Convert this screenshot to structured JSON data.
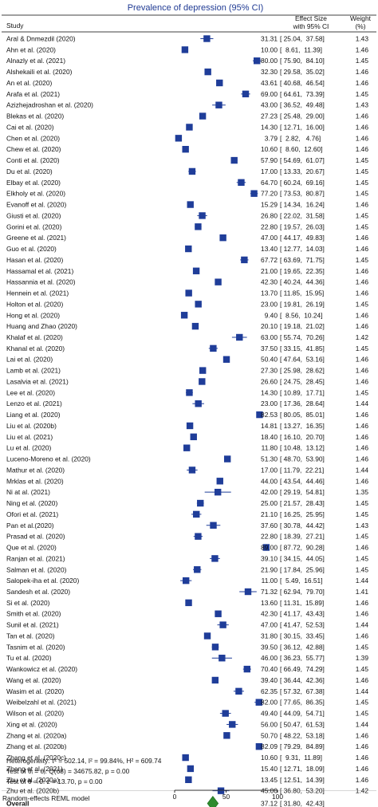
{
  "chart_data": {
    "type": "forest",
    "title": "Prevalence of depression (95% CI)",
    "header_study": "Study",
    "header_effect": "Effect Size",
    "header_effect2": "with 95% CI",
    "header_weight": "Weight",
    "header_weight2": "(%)",
    "xlim": [
      0,
      100
    ],
    "xticks": [
      0,
      50,
      100
    ],
    "colors": {
      "marker": "#1f3d99",
      "ci": "#1f3d99",
      "overall": "#2e8b2e",
      "title": "#1f3a93"
    },
    "studies": [
      {
        "label": "Aral & Dnmezdil (2020)",
        "es": 31.31,
        "lo": 25.04,
        "hi": 37.58,
        "w": 1.43
      },
      {
        "label": "Ahn et al. (2020)",
        "es": 10.0,
        "lo": 8.61,
        "hi": 11.39,
        "w": 1.46
      },
      {
        "label": "Alnazly et al. (2021)",
        "es": 80.0,
        "lo": 75.9,
        "hi": 84.1,
        "w": 1.45
      },
      {
        "label": "Alshekaili et al. (2020)",
        "es": 32.3,
        "lo": 29.58,
        "hi": 35.02,
        "w": 1.46
      },
      {
        "label": "An et al. (2020)",
        "es": 43.61,
        "lo": 40.68,
        "hi": 46.54,
        "w": 1.46
      },
      {
        "label": "Arafa et al. (2021)",
        "es": 69.0,
        "lo": 64.61,
        "hi": 73.39,
        "w": 1.45
      },
      {
        "label": "Azizhejadroshan et al. (2020)",
        "es": 43.0,
        "lo": 36.52,
        "hi": 49.48,
        "w": 1.43
      },
      {
        "label": "Blekas et al. (2020)",
        "es": 27.23,
        "lo": 25.48,
        "hi": 29.0,
        "w": 1.46
      },
      {
        "label": "Cai et al. (2020)",
        "es": 14.3,
        "lo": 12.71,
        "hi": 16.0,
        "w": 1.46
      },
      {
        "label": "Chen et al. (2020)",
        "es": 3.79,
        "lo": 2.82,
        "hi": 4.76,
        "w": 1.46
      },
      {
        "label": "Chew et al. (2020)",
        "es": 10.6,
        "lo": 8.6,
        "hi": 12.6,
        "w": 1.46
      },
      {
        "label": "Conti et al. (2020)",
        "es": 57.9,
        "lo": 54.69,
        "hi": 61.07,
        "w": 1.45
      },
      {
        "label": "Du et al. (2020)",
        "es": 17.0,
        "lo": 13.33,
        "hi": 20.67,
        "w": 1.45
      },
      {
        "label": "Elbay et al. (2020)",
        "es": 64.7,
        "lo": 60.24,
        "hi": 69.16,
        "w": 1.45
      },
      {
        "label": "Elkholy et al. (2020)",
        "es": 77.2,
        "lo": 73.53,
        "hi": 80.87,
        "w": 1.45
      },
      {
        "label": "Evanoff et al. (2020)",
        "es": 15.29,
        "lo": 14.34,
        "hi": 16.24,
        "w": 1.46
      },
      {
        "label": "Giusti et al. (2020)",
        "es": 26.8,
        "lo": 22.02,
        "hi": 31.58,
        "w": 1.45
      },
      {
        "label": "Gorini et al. (2020)",
        "es": 22.8,
        "lo": 19.57,
        "hi": 26.03,
        "w": 1.45
      },
      {
        "label": "Greene et al. (2021)",
        "es": 47.0,
        "lo": 44.17,
        "hi": 49.83,
        "w": 1.46
      },
      {
        "label": "Guo et al. (2020)",
        "es": 13.4,
        "lo": 12.77,
        "hi": 14.03,
        "w": 1.46
      },
      {
        "label": "Hasan et al. (2020)",
        "es": 67.72,
        "lo": 63.69,
        "hi": 71.75,
        "w": 1.45
      },
      {
        "label": "Hassamal et al. (2021)",
        "es": 21.0,
        "lo": 19.65,
        "hi": 22.35,
        "w": 1.46
      },
      {
        "label": "Hassannia et al. (2020)",
        "es": 42.3,
        "lo": 40.24,
        "hi": 44.36,
        "w": 1.46
      },
      {
        "label": "Hennein et al. (2021)",
        "es": 13.7,
        "lo": 11.85,
        "hi": 15.95,
        "w": 1.46
      },
      {
        "label": "Holton et al. (2020)",
        "es": 23.0,
        "lo": 19.81,
        "hi": 26.19,
        "w": 1.45
      },
      {
        "label": "Hong et al. (2020)",
        "es": 9.4,
        "lo": 8.56,
        "hi": 10.24,
        "w": 1.46
      },
      {
        "label": "Huang and Zhao (2020)",
        "es": 20.1,
        "lo": 19.18,
        "hi": 21.02,
        "w": 1.46
      },
      {
        "label": "Khalaf et al. (2020)",
        "es": 63.0,
        "lo": 55.74,
        "hi": 70.26,
        "w": 1.42
      },
      {
        "label": "Khanal  et al. (2020)",
        "es": 37.5,
        "lo": 33.15,
        "hi": 41.85,
        "w": 1.45
      },
      {
        "label": "Lai et al. (2020)",
        "es": 50.4,
        "lo": 47.64,
        "hi": 53.16,
        "w": 1.46
      },
      {
        "label": "Lamb et al. (2021)",
        "es": 27.3,
        "lo": 25.98,
        "hi": 28.62,
        "w": 1.46
      },
      {
        "label": "Lasalvia et al. (2021)",
        "es": 26.6,
        "lo": 24.75,
        "hi": 28.45,
        "w": 1.46
      },
      {
        "label": "Lee et al. (2020)",
        "es": 14.3,
        "lo": 10.89,
        "hi": 17.71,
        "w": 1.45
      },
      {
        "label": "Lenzo et al. (2021)",
        "es": 23.0,
        "lo": 17.36,
        "hi": 28.64,
        "w": 1.44
      },
      {
        "label": "Liang et al. (2020)",
        "es": 82.53,
        "lo": 80.05,
        "hi": 85.01,
        "w": 1.46
      },
      {
        "label": "Liu et al. (2020b)",
        "es": 14.81,
        "lo": 13.27,
        "hi": 16.35,
        "w": 1.46
      },
      {
        "label": "Liu et al. (2021)",
        "es": 18.4,
        "lo": 16.1,
        "hi": 20.7,
        "w": 1.46
      },
      {
        "label": "Lu et al. (2020)",
        "es": 11.8,
        "lo": 10.48,
        "hi": 13.12,
        "w": 1.46
      },
      {
        "label": "Luceno-Moreno et al. (2020)",
        "es": 51.3,
        "lo": 48.7,
        "hi": 53.9,
        "w": 1.46
      },
      {
        "label": "Mathur et al. (2020)",
        "es": 17.0,
        "lo": 11.79,
        "hi": 22.21,
        "w": 1.44
      },
      {
        "label": "Mrklas et al. (2020)",
        "es": 44.0,
        "lo": 43.54,
        "hi": 44.46,
        "w": 1.46
      },
      {
        "label": "Ni at al. (2021)",
        "es": 42.0,
        "lo": 29.19,
        "hi": 54.81,
        "w": 1.35
      },
      {
        "label": "Ning et al. (2020)",
        "es": 25.0,
        "lo": 21.57,
        "hi": 28.43,
        "w": 1.45
      },
      {
        "label": "Ofori et al. (2021)",
        "es": 21.1,
        "lo": 16.25,
        "hi": 25.95,
        "w": 1.45
      },
      {
        "label": "Pan et al.(2020)",
        "es": 37.6,
        "lo": 30.78,
        "hi": 44.42,
        "w": 1.43
      },
      {
        "label": "Prasad et al. (2020)",
        "es": 22.8,
        "lo": 18.39,
        "hi": 27.21,
        "w": 1.45
      },
      {
        "label": "Que et al. (2020)",
        "es": 89.0,
        "lo": 87.72,
        "hi": 90.28,
        "w": 1.46
      },
      {
        "label": "Ranjan et al. (2021)",
        "es": 39.1,
        "lo": 34.15,
        "hi": 44.05,
        "w": 1.45
      },
      {
        "label": "Salman et al. (2020)",
        "es": 21.9,
        "lo": 17.84,
        "hi": 25.96,
        "w": 1.45
      },
      {
        "label": "Salopek-iha et al. (2020)",
        "es": 11.0,
        "lo": 5.49,
        "hi": 16.51,
        "w": 1.44
      },
      {
        "label": "Sandesh et al. (2020)",
        "es": 71.32,
        "lo": 62.94,
        "hi": 79.7,
        "w": 1.41
      },
      {
        "label": "Si et al. (2020)",
        "es": 13.6,
        "lo": 11.31,
        "hi": 15.89,
        "w": 1.46
      },
      {
        "label": "Smith et al. (2020)",
        "es": 42.3,
        "lo": 41.17,
        "hi": 43.43,
        "w": 1.46
      },
      {
        "label": "Sunil et al. (2021)",
        "es": 47.0,
        "lo": 41.47,
        "hi": 52.53,
        "w": 1.44
      },
      {
        "label": "Tan et al. (2020)",
        "es": 31.8,
        "lo": 30.15,
        "hi": 33.45,
        "w": 1.46
      },
      {
        "label": "Tasnim et al. (2020)",
        "es": 39.5,
        "lo": 36.12,
        "hi": 42.88,
        "w": 1.45
      },
      {
        "label": "Tu et al. (2020)",
        "es": 46.0,
        "lo": 36.23,
        "hi": 55.77,
        "w": 1.39
      },
      {
        "label": "Wankowicz et al. (2020)",
        "es": 70.4,
        "lo": 66.49,
        "hi": 74.29,
        "w": 1.45
      },
      {
        "label": "Wang et al. (2020)",
        "es": 39.4,
        "lo": 36.44,
        "hi": 42.36,
        "w": 1.46
      },
      {
        "label": "Wasim et al. (2020)",
        "es": 62.35,
        "lo": 57.32,
        "hi": 67.38,
        "w": 1.44
      },
      {
        "label": "Weibelzahl et al. (2021)",
        "es": 82.0,
        "lo": 77.65,
        "hi": 86.35,
        "w": 1.45
      },
      {
        "label": "Wilson et al. (2020)",
        "es": 49.4,
        "lo": 44.09,
        "hi": 54.71,
        "w": 1.45
      },
      {
        "label": "Xing et al. (2020)",
        "es": 56.0,
        "lo": 50.47,
        "hi": 61.53,
        "w": 1.44
      },
      {
        "label": "Zhang et al. (2020a)",
        "es": 50.7,
        "lo": 48.22,
        "hi": 53.18,
        "w": 1.46
      },
      {
        "label": "Zhang et al. (2020b)",
        "es": 82.09,
        "lo": 79.29,
        "hi": 84.89,
        "w": 1.46
      },
      {
        "label": "Zhang et al. (2020c)",
        "es": 10.6,
        "lo": 9.31,
        "hi": 11.89,
        "w": 1.46
      },
      {
        "label": "Zheng et al. (2021)",
        "es": 15.4,
        "lo": 12.71,
        "hi": 18.09,
        "w": 1.46
      },
      {
        "label": "Zhu et al. (2020a)",
        "es": 13.45,
        "lo": 12.51,
        "hi": 14.39,
        "w": 1.46
      },
      {
        "label": "Zhu et al. (2020b)",
        "es": 45.0,
        "lo": 36.8,
        "hi": 53.2,
        "w": 1.42
      }
    ],
    "overall": {
      "label": "Overall",
      "es": 37.12,
      "lo": 31.8,
      "hi": 42.43
    },
    "heterogeneity": "Heterogeneity: τ² = 502.14, I² = 99.84%, H² = 609.74",
    "test_homogeneity": "Test of θᵢ = θⱼ: Q(68) = 34675.82, p = 0.00",
    "test_zero": "Test of θ = 0: z = 13.70, p = 0.00",
    "footnote": "Random-effects REML model"
  }
}
